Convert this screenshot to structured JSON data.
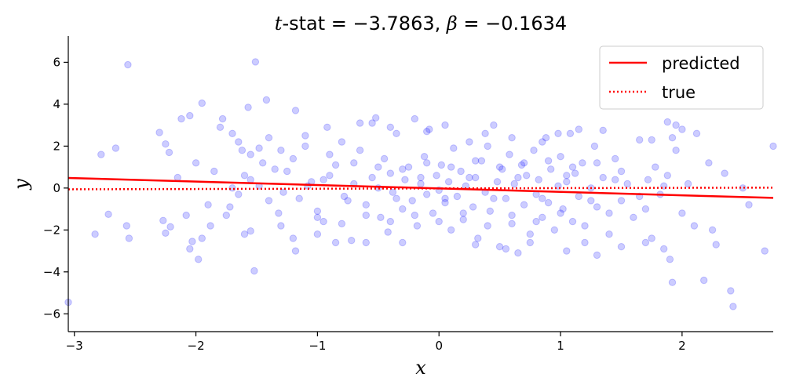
{
  "chart_data": {
    "type": "scatter",
    "title": "t-stat = −3.7863, β = −0.1634",
    "title_parts": {
      "t_symbol": "t",
      "t_rest": "-stat",
      "t_value": " = −3.7863, ",
      "beta_symbol": "β",
      "beta_value": " = −0.1634"
    },
    "xlabel": "x",
    "ylabel": "y",
    "xlim": [
      -3.05,
      2.75
    ],
    "ylim": [
      -6.85,
      7.25
    ],
    "xticks": [
      -3,
      -2,
      -1,
      0,
      1,
      2
    ],
    "yticks": [
      -6,
      -4,
      -2,
      0,
      2,
      4,
      6
    ],
    "xtick_labels": [
      "−3",
      "−2",
      "−1",
      "0",
      "1",
      "2"
    ],
    "ytick_labels": [
      "−6",
      "−4",
      "−2",
      "0",
      "2",
      "4",
      "6"
    ],
    "grid": false,
    "legend_position": "top-right",
    "scatter": {
      "color": "#0000ff",
      "opacity": 0.2,
      "points": [
        [
          -2.56,
          5.88
        ],
        [
          -1.51,
          6.02
        ],
        [
          -1.42,
          4.2
        ],
        [
          -1.95,
          4.05
        ],
        [
          -2.05,
          3.45
        ],
        [
          -2.12,
          3.3
        ],
        [
          -1.78,
          3.3
        ],
        [
          -1.57,
          3.85
        ],
        [
          -2.3,
          2.65
        ],
        [
          -2.25,
          2.1
        ],
        [
          -2.22,
          1.7
        ],
        [
          -2.66,
          1.9
        ],
        [
          -2.78,
          1.6
        ],
        [
          -1.8,
          2.9
        ],
        [
          -1.7,
          2.6
        ],
        [
          -1.65,
          2.2
        ],
        [
          -1.62,
          1.8
        ],
        [
          -1.55,
          1.6
        ],
        [
          -1.48,
          1.9
        ],
        [
          -2.15,
          0.5
        ],
        [
          -2.72,
          -1.25
        ],
        [
          -2.83,
          -2.2
        ],
        [
          -2.57,
          -1.8
        ],
        [
          -2.55,
          -2.4
        ],
        [
          -2.27,
          -1.55
        ],
        [
          -2.21,
          -1.85
        ],
        [
          -2.25,
          -2.15
        ],
        [
          -2.05,
          -2.9
        ],
        [
          -2.03,
          -2.55
        ],
        [
          -1.98,
          -3.4
        ],
        [
          -1.95,
          -2.4
        ],
        [
          -1.88,
          -1.8
        ],
        [
          -1.75,
          -1.3
        ],
        [
          -1.52,
          -3.95
        ],
        [
          -1.55,
          -2.05
        ],
        [
          -1.6,
          -2.2
        ],
        [
          -1.2,
          -2.4
        ],
        [
          -1.18,
          -3.0
        ],
        [
          -3.05,
          -5.45
        ],
        [
          -1.7,
          0.0
        ],
        [
          -1.65,
          -0.3
        ],
        [
          -1.55,
          0.4
        ],
        [
          -1.48,
          0.1
        ],
        [
          -1.4,
          -0.6
        ],
        [
          -1.32,
          -1.2
        ],
        [
          -1.25,
          0.8
        ],
        [
          -1.2,
          1.4
        ],
        [
          -1.18,
          3.7
        ],
        [
          -1.1,
          2.5
        ],
        [
          -1.05,
          0.3
        ],
        [
          -1.0,
          -1.1
        ],
        [
          -0.95,
          -1.6
        ],
        [
          -0.9,
          0.6
        ],
        [
          -0.85,
          1.1
        ],
        [
          -0.8,
          2.2
        ],
        [
          -0.78,
          -0.4
        ],
        [
          -0.72,
          -2.5
        ],
        [
          -0.7,
          0.2
        ],
        [
          -0.65,
          1.8
        ],
        [
          -0.6,
          -0.8
        ],
        [
          -0.55,
          3.1
        ],
        [
          -0.52,
          3.35
        ],
        [
          -0.5,
          0.0
        ],
        [
          -0.48,
          -1.4
        ],
        [
          -0.45,
          1.4
        ],
        [
          -0.42,
          -2.1
        ],
        [
          -0.4,
          0.7
        ],
        [
          -0.38,
          -0.2
        ],
        [
          -0.35,
          2.6
        ],
        [
          -0.3,
          -1.0
        ],
        [
          -0.28,
          0.4
        ],
        [
          -0.25,
          1.0
        ],
        [
          -0.22,
          -0.6
        ],
        [
          -0.2,
          3.3
        ],
        [
          -0.18,
          -1.8
        ],
        [
          -0.15,
          0.2
        ],
        [
          -0.12,
          1.5
        ],
        [
          -0.1,
          -0.3
        ],
        [
          -0.08,
          2.8
        ],
        [
          -0.05,
          -1.2
        ],
        [
          -0.02,
          0.6
        ],
        [
          0.0,
          -0.1
        ],
        [
          0.02,
          1.1
        ],
        [
          0.05,
          -0.7
        ],
        [
          0.08,
          0.3
        ],
        [
          0.1,
          -2.0
        ],
        [
          0.12,
          1.9
        ],
        [
          0.15,
          -0.4
        ],
        [
          0.18,
          0.8
        ],
        [
          0.2,
          -1.5
        ],
        [
          0.22,
          0.1
        ],
        [
          0.25,
          2.2
        ],
        [
          0.28,
          -0.9
        ],
        [
          0.3,
          0.5
        ],
        [
          0.32,
          -2.4
        ],
        [
          0.35,
          1.3
        ],
        [
          0.38,
          -0.2
        ],
        [
          0.4,
          2.0
        ],
        [
          0.42,
          -1.1
        ],
        [
          0.45,
          3.0
        ],
        [
          0.48,
          0.3
        ],
        [
          0.5,
          -2.8
        ],
        [
          0.52,
          0.9
        ],
        [
          0.55,
          -0.5
        ],
        [
          0.58,
          1.6
        ],
        [
          0.6,
          -1.7
        ],
        [
          0.62,
          0.2
        ],
        [
          0.65,
          -3.1
        ],
        [
          0.68,
          1.1
        ],
        [
          0.7,
          -0.8
        ],
        [
          0.72,
          0.6
        ],
        [
          0.75,
          -2.2
        ],
        [
          0.78,
          1.8
        ],
        [
          0.8,
          -0.3
        ],
        [
          0.82,
          0.4
        ],
        [
          0.85,
          -1.4
        ],
        [
          0.88,
          2.4
        ],
        [
          0.9,
          -0.7
        ],
        [
          0.92,
          0.9
        ],
        [
          0.95,
          -2.0
        ],
        [
          0.98,
          0.1
        ],
        [
          1.0,
          1.5
        ],
        [
          1.02,
          -1.0
        ],
        [
          1.05,
          0.3
        ],
        [
          1.08,
          2.6
        ],
        [
          1.1,
          -1.6
        ],
        [
          1.12,
          0.7
        ],
        [
          1.15,
          -0.4
        ],
        [
          1.18,
          1.2
        ],
        [
          1.2,
          -2.6
        ],
        [
          1.25,
          0.0
        ],
        [
          1.28,
          2.0
        ],
        [
          1.3,
          -0.9
        ],
        [
          1.35,
          0.5
        ],
        [
          1.4,
          -2.2
        ],
        [
          1.45,
          1.4
        ],
        [
          1.5,
          -0.6
        ],
        [
          1.55,
          0.2
        ],
        [
          1.6,
          -1.4
        ],
        [
          1.65,
          2.3
        ],
        [
          1.7,
          -1.0
        ],
        [
          1.72,
          0.4
        ],
        [
          1.75,
          -2.4
        ],
        [
          1.78,
          1.0
        ],
        [
          1.82,
          -0.3
        ],
        [
          1.85,
          -2.9
        ],
        [
          1.88,
          0.6
        ],
        [
          1.9,
          -3.4
        ],
        [
          1.92,
          -4.5
        ],
        [
          1.95,
          1.8
        ],
        [
          2.0,
          -1.2
        ],
        [
          2.05,
          0.2
        ],
        [
          2.1,
          -1.8
        ],
        [
          2.12,
          2.6
        ],
        [
          2.18,
          -4.4
        ],
        [
          2.22,
          1.2
        ],
        [
          2.25,
          -2.0
        ],
        [
          2.28,
          -2.7
        ],
        [
          2.35,
          0.7
        ],
        [
          2.4,
          -4.9
        ],
        [
          2.42,
          -5.65
        ],
        [
          2.5,
          0.0
        ],
        [
          2.55,
          -0.8
        ],
        [
          2.68,
          -3.0
        ],
        [
          2.75,
          2.0
        ],
        [
          1.88,
          3.15
        ],
        [
          1.95,
          3.0
        ],
        [
          2.0,
          2.8
        ],
        [
          1.92,
          2.4
        ],
        [
          1.75,
          2.3
        ],
        [
          1.35,
          2.75
        ],
        [
          1.15,
          2.8
        ],
        [
          0.98,
          2.6
        ],
        [
          0.85,
          2.2
        ],
        [
          0.6,
          2.4
        ],
        [
          0.38,
          2.6
        ],
        [
          0.05,
          3.0
        ],
        [
          -0.1,
          2.7
        ],
        [
          -0.4,
          2.9
        ],
        [
          -0.65,
          3.1
        ],
        [
          -0.92,
          2.9
        ],
        [
          -1.1,
          2.0
        ],
        [
          -1.4,
          2.4
        ],
        [
          -0.3,
          -2.6
        ],
        [
          -0.6,
          -2.6
        ],
        [
          -0.85,
          -2.6
        ],
        [
          -1.0,
          -2.2
        ],
        [
          0.3,
          -2.7
        ],
        [
          0.55,
          -2.9
        ],
        [
          0.75,
          -2.6
        ],
        [
          1.05,
          -3.0
        ],
        [
          1.3,
          -3.2
        ],
        [
          1.5,
          -2.8
        ],
        [
          1.7,
          -2.6
        ],
        [
          -1.3,
          1.8
        ],
        [
          -0.9,
          1.6
        ],
        [
          -0.7,
          1.2
        ],
        [
          -0.5,
          1.0
        ],
        [
          -0.3,
          0.9
        ],
        [
          -0.1,
          1.2
        ],
        [
          0.1,
          1.0
        ],
        [
          0.3,
          1.3
        ],
        [
          0.5,
          1.0
        ],
        [
          0.7,
          1.2
        ],
        [
          0.9,
          1.3
        ],
        [
          1.1,
          1.0
        ],
        [
          1.3,
          1.2
        ],
        [
          1.5,
          0.8
        ],
        [
          -1.3,
          -1.8
        ],
        [
          -1.0,
          -1.4
        ],
        [
          -0.8,
          -1.7
        ],
        [
          -0.6,
          -1.3
        ],
        [
          -0.4,
          -1.6
        ],
        [
          -0.2,
          -1.3
        ],
        [
          0.0,
          -1.6
        ],
        [
          0.2,
          -1.2
        ],
        [
          0.4,
          -1.8
        ],
        [
          0.6,
          -1.3
        ],
        [
          0.8,
          -1.6
        ],
        [
          1.0,
          -1.2
        ],
        [
          1.2,
          -1.8
        ],
        [
          1.4,
          -1.2
        ],
        [
          -1.6,
          0.6
        ],
        [
          -1.35,
          0.9
        ],
        [
          -1.15,
          -0.5
        ],
        [
          -0.95,
          0.4
        ],
        [
          -0.75,
          -0.6
        ],
        [
          -0.55,
          0.5
        ],
        [
          -0.35,
          -0.5
        ],
        [
          -0.15,
          0.5
        ],
        [
          0.05,
          -0.5
        ],
        [
          0.25,
          0.5
        ],
        [
          0.45,
          -0.5
        ],
        [
          0.65,
          0.5
        ],
        [
          0.85,
          -0.5
        ],
        [
          1.05,
          0.6
        ],
        [
          1.25,
          -0.6
        ],
        [
          1.45,
          0.4
        ],
        [
          1.65,
          -0.4
        ],
        [
          1.85,
          0.1
        ],
        [
          -1.85,
          0.8
        ],
        [
          -1.9,
          -0.8
        ],
        [
          -2.0,
          1.2
        ],
        [
          -2.08,
          -1.3
        ],
        [
          -1.72,
          -0.9
        ],
        [
          -1.45,
          1.2
        ],
        [
          -1.28,
          -0.2
        ],
        [
          -1.08,
          0.1
        ]
      ]
    },
    "series": [
      {
        "name": "predicted",
        "style": "solid",
        "color": "#ff0000",
        "x": [
          -3.05,
          2.75
        ],
        "y": [
          0.48,
          -0.47
        ]
      },
      {
        "name": "true",
        "style": "dotted",
        "color": "#ff0000",
        "x": [
          -3.05,
          2.75
        ],
        "y": [
          -0.06,
          0.02
        ]
      }
    ]
  }
}
